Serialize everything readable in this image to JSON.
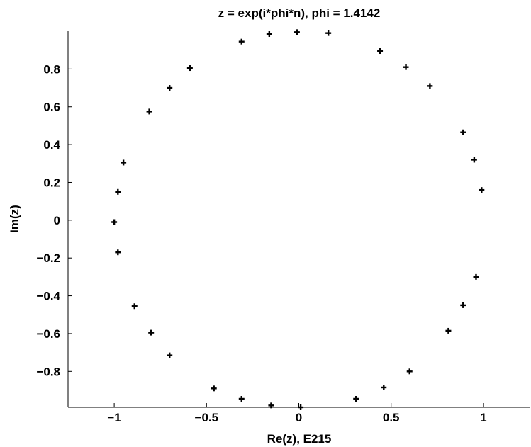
{
  "chart_data": {
    "type": "scatter",
    "title": "z = exp(i*phi*n), phi = 1.4142",
    "xlabel": "Re(z),  E215",
    "ylabel": "Im(z)",
    "xlim": [
      -1.25,
      1.25
    ],
    "ylim": [
      -0.99,
      1.0
    ],
    "xticks": [
      -1,
      -0.5,
      0,
      0.5,
      1
    ],
    "xtick_labels": [
      "−1",
      "−0.5",
      "0",
      "0.5",
      "1"
    ],
    "yticks": [
      -0.8,
      -0.6,
      -0.4,
      -0.2,
      0,
      0.2,
      0.4,
      0.6,
      0.8
    ],
    "ytick_labels": [
      "−0.8",
      "−0.6",
      "−0.4",
      "−0.2",
      "0",
      "0.2",
      "0.4",
      "0.6",
      "0.8"
    ],
    "grid": false,
    "marker": "plus",
    "series": [
      {
        "x": [
          -0.01,
          0.16,
          0.44,
          0.58,
          0.71,
          0.89,
          0.95,
          0.99,
          0.96,
          0.89,
          0.81,
          0.6,
          0.46,
          0.31,
          0.01,
          -0.15,
          -0.31,
          -0.46,
          -0.7,
          -0.8,
          -0.89,
          -0.98,
          -1.0,
          -0.98,
          -0.95,
          -0.81,
          -0.7,
          -0.59,
          -0.31,
          -0.16
        ],
        "y": [
          0.995,
          0.99,
          0.895,
          0.81,
          0.71,
          0.465,
          0.32,
          0.16,
          -0.3,
          -0.45,
          -0.585,
          -0.8,
          -0.885,
          -0.945,
          -0.99,
          -0.98,
          -0.945,
          -0.89,
          -0.715,
          -0.595,
          -0.455,
          -0.17,
          -0.01,
          0.15,
          0.305,
          0.575,
          0.7,
          0.805,
          0.945,
          0.985
        ]
      }
    ]
  }
}
